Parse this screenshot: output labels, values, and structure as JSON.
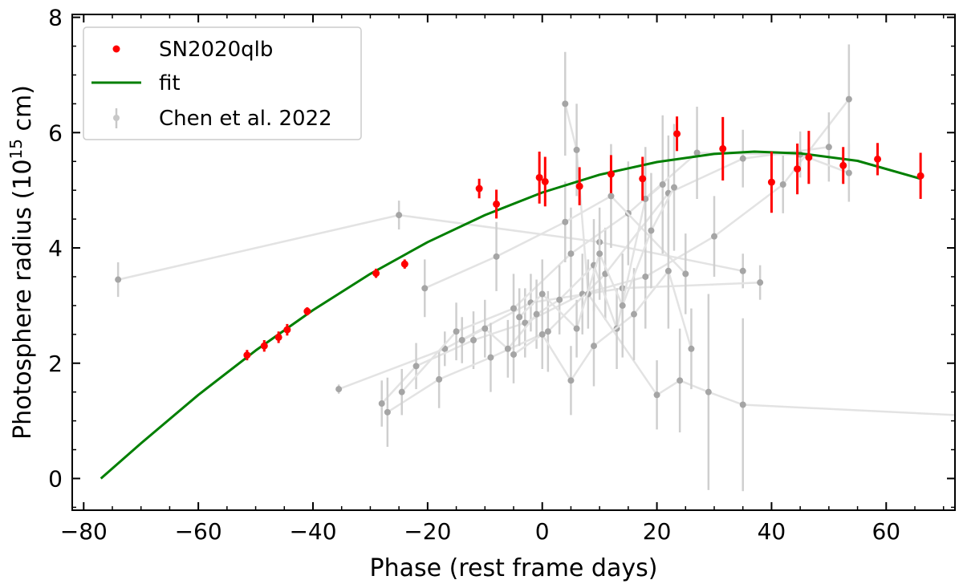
{
  "chart_data": {
    "type": "scatter",
    "title": "",
    "xlabel": "Phase (rest frame days)",
    "ylabel": {
      "prefix": "Photosphere radius (10",
      "exponent": "15",
      "suffix": " cm)"
    },
    "xlim": [
      -82,
      72
    ],
    "ylim": [
      -0.55,
      8.05
    ],
    "xticks": [
      -80,
      -60,
      -40,
      -20,
      0,
      20,
      40,
      60
    ],
    "xtick_labels": [
      "−80",
      "−60",
      "−40",
      "−20",
      "0",
      "20",
      "40",
      "60"
    ],
    "yticks": [
      0,
      2,
      4,
      6,
      8
    ],
    "ytick_labels": [
      "0",
      "2",
      "4",
      "6",
      "8"
    ],
    "legend": {
      "location": "top-left",
      "entries": [
        {
          "label": "SN2020qlb",
          "color": "#ff0000",
          "marker": "dot"
        },
        {
          "label": "fit",
          "color": "#007f00",
          "marker": "line"
        },
        {
          "label": "Chen et al. 2022",
          "color": "#bdbdbd",
          "marker": "errorbar"
        }
      ]
    },
    "series": [
      {
        "name": "SN2020qlb",
        "color": "#ff0000",
        "points": [
          {
            "x": -51.5,
            "y": 2.14,
            "err": 0.09
          },
          {
            "x": -48.5,
            "y": 2.3,
            "err": 0.1
          },
          {
            "x": -46,
            "y": 2.45,
            "err": 0.1
          },
          {
            "x": -44.5,
            "y": 2.58,
            "err": 0.1
          },
          {
            "x": -41,
            "y": 2.9,
            "err": 0.07
          },
          {
            "x": -29,
            "y": 3.56,
            "err": 0.08
          },
          {
            "x": -24,
            "y": 3.72,
            "err": 0.08
          },
          {
            "x": -11,
            "y": 5.03,
            "err": 0.17
          },
          {
            "x": -8,
            "y": 4.76,
            "err": 0.25
          },
          {
            "x": -0.5,
            "y": 5.22,
            "err": 0.45
          },
          {
            "x": 0.5,
            "y": 5.15,
            "err": 0.43
          },
          {
            "x": 6.5,
            "y": 5.07,
            "err": 0.33
          },
          {
            "x": 12,
            "y": 5.28,
            "err": 0.33
          },
          {
            "x": 17.5,
            "y": 5.2,
            "err": 0.38
          },
          {
            "x": 23.5,
            "y": 5.98,
            "err": 0.3
          },
          {
            "x": 31.5,
            "y": 5.72,
            "err": 0.55
          },
          {
            "x": 40,
            "y": 5.14,
            "err": 0.53
          },
          {
            "x": 44.5,
            "y": 5.37,
            "err": 0.44
          },
          {
            "x": 46.5,
            "y": 5.57,
            "err": 0.46
          },
          {
            "x": 52.5,
            "y": 5.43,
            "err": 0.32
          },
          {
            "x": 58.5,
            "y": 5.54,
            "err": 0.28
          },
          {
            "x": 66,
            "y": 5.25,
            "err": 0.4
          }
        ]
      },
      {
        "name": "fit",
        "color": "#007f00",
        "type": "line",
        "x": [
          -77,
          -70,
          -60,
          -50,
          -40,
          -30,
          -20,
          -10,
          0,
          10,
          20,
          30,
          37,
          45,
          55,
          66
        ],
        "y": [
          0,
          0.61,
          1.45,
          2.22,
          2.92,
          3.55,
          4.1,
          4.57,
          4.96,
          5.27,
          5.49,
          5.63,
          5.67,
          5.64,
          5.51,
          5.2
        ]
      },
      {
        "name": "Chen et al. 2022",
        "color": "#a0a0a0",
        "tracks": [
          [
            {
              "x": -74,
              "y": 3.45,
              "err": 0.3
            },
            {
              "x": -25,
              "y": 4.57,
              "err": 0.25
            },
            {
              "x": 10,
              "y": 4.1,
              "err": 0.3
            },
            {
              "x": 35,
              "y": 3.6,
              "err": 0.3
            }
          ],
          [
            {
              "x": -35.5,
              "y": 1.55,
              "err": 0.08
            },
            {
              "x": -17,
              "y": 2.25,
              "err": 0.3
            },
            {
              "x": -2,
              "y": 3.05,
              "err": 0.5
            },
            {
              "x": 14,
              "y": 3.3,
              "err": 0.6
            },
            {
              "x": 38,
              "y": 3.4,
              "err": 0.3
            }
          ],
          [
            {
              "x": -28,
              "y": 1.3,
              "err": 0.4
            },
            {
              "x": -22,
              "y": 1.95,
              "err": 0.4
            },
            {
              "x": -12,
              "y": 2.4,
              "err": 0.5
            },
            {
              "x": -3,
              "y": 2.7,
              "err": 0.6
            },
            {
              "x": 7,
              "y": 3.2,
              "err": 0.7
            },
            {
              "x": 18,
              "y": 3.5,
              "err": 0.9
            },
            {
              "x": 30,
              "y": 4.2,
              "err": 0.7
            },
            {
              "x": 42,
              "y": 5.1,
              "err": 0.5
            },
            {
              "x": 53.5,
              "y": 6.58,
              "err": 0.95
            }
          ],
          [
            {
              "x": -27,
              "y": 1.15,
              "err": 0.6
            },
            {
              "x": -18,
              "y": 1.72,
              "err": 0.5
            },
            {
              "x": -9,
              "y": 2.1,
              "err": 0.6
            },
            {
              "x": 1,
              "y": 2.55,
              "err": 0.7
            },
            {
              "x": 11,
              "y": 3.55,
              "err": 0.8
            },
            {
              "x": 22,
              "y": 4.95,
              "err": 1.0
            },
            {
              "x": 35,
              "y": 5.55,
              "err": 0.5
            },
            {
              "x": 50,
              "y": 5.75,
              "err": 0.6
            }
          ],
          [
            {
              "x": -24.5,
              "y": 1.5,
              "err": 0.4
            },
            {
              "x": -15,
              "y": 2.55,
              "err": 0.5
            },
            {
              "x": -5,
              "y": 2.95,
              "err": 0.6
            },
            {
              "x": 5,
              "y": 3.9,
              "err": 0.8
            },
            {
              "x": 15,
              "y": 4.6,
              "err": 0.9
            },
            {
              "x": 27,
              "y": 5.65,
              "err": 0.8
            },
            {
              "x": 45,
              "y": 5.62,
              "err": 0.4
            },
            {
              "x": 53.5,
              "y": 5.3,
              "err": 0.5
            }
          ],
          [
            {
              "x": -20.5,
              "y": 3.3,
              "err": 0.5
            },
            {
              "x": -8,
              "y": 3.85,
              "err": 0.6
            },
            {
              "x": 4,
              "y": 4.45,
              "err": 0.7
            },
            {
              "x": 12,
              "y": 4.9,
              "err": 0.9
            },
            {
              "x": 25,
              "y": 3.55,
              "err": 0.7
            }
          ],
          [
            {
              "x": 4,
              "y": 6.5,
              "err": 0.9
            },
            {
              "x": 6,
              "y": 5.7,
              "err": 0.8
            },
            {
              "x": 8,
              "y": 3.2,
              "err": 0.6
            },
            {
              "x": 20,
              "y": 1.45,
              "err": 0.6
            },
            {
              "x": 24,
              "y": 1.7,
              "err": 0.9
            },
            {
              "x": 29,
              "y": 1.5,
              "err": 1.7
            },
            {
              "x": 35,
              "y": 1.28,
              "err": 1.5
            },
            {
              "x": 72,
              "y": 1.1,
              "err": 0
            }
          ],
          [
            {
              "x": -14,
              "y": 2.4,
              "err": 0.4
            },
            {
              "x": -10,
              "y": 2.6,
              "err": 0.5
            },
            {
              "x": -6,
              "y": 2.25,
              "err": 0.5
            },
            {
              "x": -1,
              "y": 2.85,
              "err": 0.6
            },
            {
              "x": 3,
              "y": 3.1,
              "err": 0.6
            },
            {
              "x": 9,
              "y": 3.7,
              "err": 0.8
            },
            {
              "x": 13,
              "y": 2.6,
              "err": 0.7
            },
            {
              "x": 18,
              "y": 4.85,
              "err": 0.9
            },
            {
              "x": 21,
              "y": 5.1,
              "err": 1.2
            }
          ],
          [
            {
              "x": -5,
              "y": 2.15,
              "err": 0.5
            },
            {
              "x": 0,
              "y": 2.5,
              "err": 0.6
            },
            {
              "x": 5,
              "y": 1.7,
              "err": 0.6
            },
            {
              "x": 9,
              "y": 2.3,
              "err": 0.7
            },
            {
              "x": 16,
              "y": 2.85,
              "err": 0.8
            },
            {
              "x": 22,
              "y": 3.6,
              "err": 1.0
            },
            {
              "x": 26,
              "y": 2.25,
              "err": 0.7
            }
          ],
          [
            {
              "x": -4,
              "y": 2.8,
              "err": 0.5
            },
            {
              "x": 0,
              "y": 3.2,
              "err": 0.6
            },
            {
              "x": 6,
              "y": 2.6,
              "err": 0.5
            },
            {
              "x": 10,
              "y": 3.9,
              "err": 0.8
            },
            {
              "x": 14,
              "y": 3.0,
              "err": 0.9
            },
            {
              "x": 19,
              "y": 4.3,
              "err": 1.0
            },
            {
              "x": 23,
              "y": 5.05,
              "err": 1.1
            }
          ]
        ]
      }
    ]
  }
}
